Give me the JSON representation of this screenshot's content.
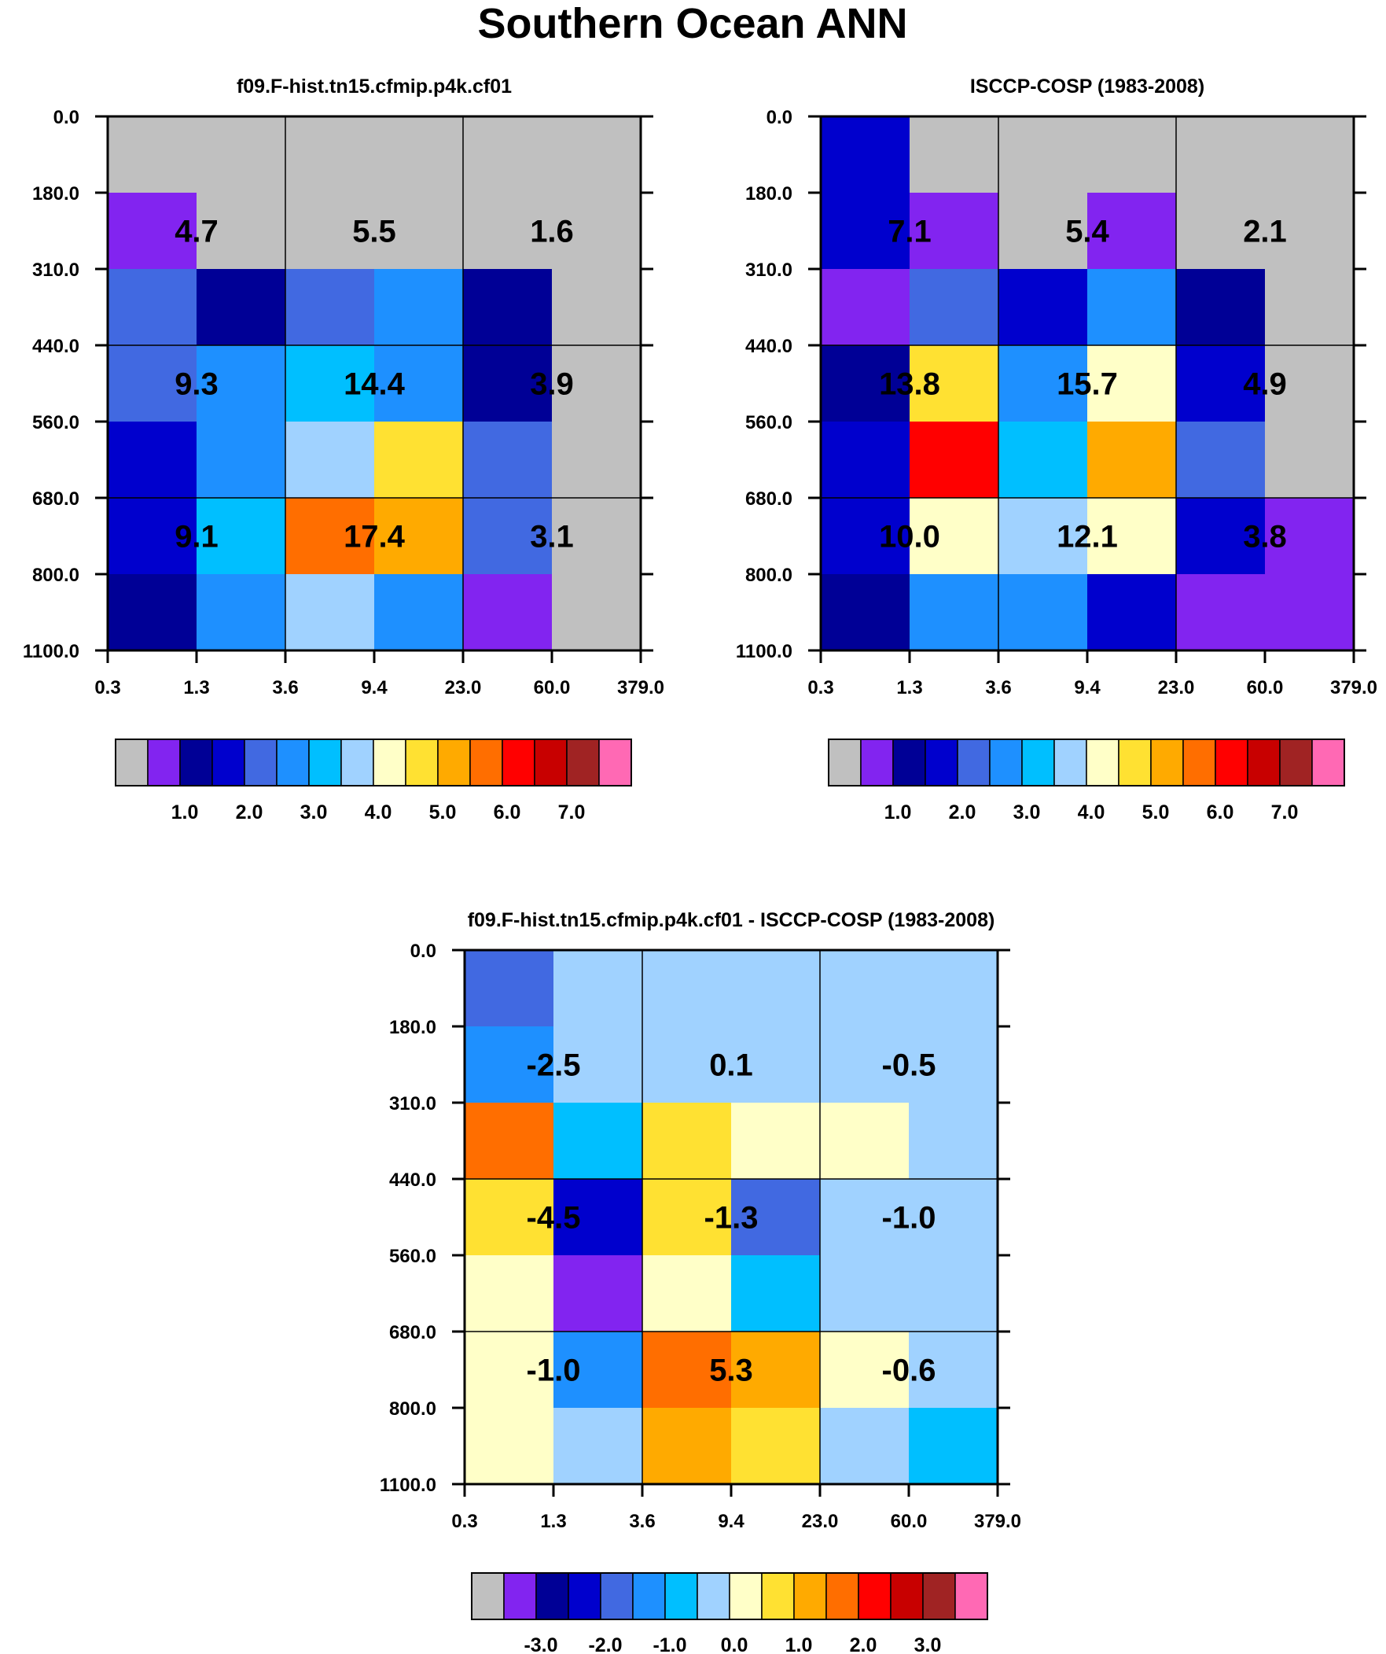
{
  "figure": {
    "title": "Southern Ocean ANN"
  },
  "chart_data": [
    {
      "type": "heatmap",
      "name": "panel-model",
      "title": "f09.F-hist.tn15.cfmip.p4k.cf01",
      "xticklabels": [
        "0.3",
        "1.3",
        "3.6",
        "9.4",
        "23.0",
        "60.0",
        "379.0"
      ],
      "yticklabels": [
        "0.0",
        "180.0",
        "310.0",
        "440.0",
        "560.0",
        "680.0",
        "800.0",
        "1100.0"
      ],
      "grid": [
        [
          "missing",
          "missing",
          "missing",
          "missing",
          "missing",
          "missing"
        ],
        [
          "0.5-1.0",
          "missing",
          "missing",
          "missing",
          "missing",
          "missing"
        ],
        [
          "2.5-3.0",
          "1.0-1.5",
          "2.5-3.0",
          "3.0-3.5",
          "1.0-1.5",
          "missing"
        ],
        [
          "2.5-3.0",
          "3.0-3.5",
          "3.5-4.0",
          "3.0-3.5",
          "1.0-1.5",
          "missing"
        ],
        [
          "1.5-2.0",
          "3.0-3.5",
          "4.0-4.5",
          "5.0-5.5",
          "2.5-3.0",
          "missing"
        ],
        [
          "1.5-2.0",
          "3.5-4.0",
          "6.0-6.5",
          "5.5-6.0",
          "2.5-3.0",
          "missing"
        ],
        [
          "1.0-1.5",
          "3.0-3.5",
          "4.0-4.5",
          "3.0-3.5",
          "0.5-1.0",
          "missing"
        ]
      ],
      "annotations": [
        {
          "label": "4.7",
          "row": 0,
          "col": 0
        },
        {
          "label": "5.5",
          "row": 0,
          "col": 1
        },
        {
          "label": "1.6",
          "row": 0,
          "col": 2
        },
        {
          "label": "9.3",
          "row": 1,
          "col": 0
        },
        {
          "label": "14.4",
          "row": 1,
          "col": 1
        },
        {
          "label": "3.9",
          "row": 1,
          "col": 2
        },
        {
          "label": "9.1",
          "row": 2,
          "col": 0
        },
        {
          "label": "17.4",
          "row": 2,
          "col": 1
        },
        {
          "label": "3.1",
          "row": 2,
          "col": 2
        }
      ],
      "colorbar": {
        "bins": [
          "missing",
          "0.5-1.0",
          "1.0-1.5",
          "1.5-2.0",
          "2.5-3.0",
          "3.0-3.5",
          "3.5-4.0",
          "4.0-4.5",
          "4.5-5.0",
          "5.0-5.5",
          "5.5-6.0",
          "6.0-6.5",
          "6.5-7.0",
          "7.0-7.5",
          "7.5-8.0",
          ">8.0"
        ],
        "labels": [
          "1.0",
          "2.0",
          "3.0",
          "4.0",
          "5.0",
          "6.0",
          "7.0"
        ],
        "label_boxes": [
          2,
          4,
          6,
          8,
          10,
          12,
          14
        ]
      }
    },
    {
      "type": "heatmap",
      "name": "panel-obs",
      "title": "ISCCP-COSP (1983-2008)",
      "xticklabels": [
        "0.3",
        "1.3",
        "3.6",
        "9.4",
        "23.0",
        "60.0",
        "379.0"
      ],
      "yticklabels": [
        "0.0",
        "180.0",
        "310.0",
        "440.0",
        "560.0",
        "680.0",
        "800.0",
        "1100.0"
      ],
      "grid": [
        [
          "1.5-2.0",
          "missing",
          "missing",
          "missing",
          "missing",
          "missing"
        ],
        [
          "1.5-2.0",
          "0.5-1.0",
          "missing",
          "0.5-1.0",
          "missing",
          "missing"
        ],
        [
          "0.5-1.0",
          "2.5-3.0",
          "1.5-2.0",
          "3.0-3.5",
          "1.0-1.5",
          "missing"
        ],
        [
          "1.0-1.5",
          "5.0-5.5",
          "3.0-3.5",
          "4.5-5.0",
          "1.5-2.0",
          "missing"
        ],
        [
          "1.5-2.0",
          "6.5-7.0",
          "3.5-4.0",
          "5.5-6.0",
          "2.5-3.0",
          "missing"
        ],
        [
          "1.5-2.0",
          "4.5-5.0",
          "4.0-4.5",
          "4.5-5.0",
          "1.5-2.0",
          "0.5-1.0"
        ],
        [
          "1.0-1.5",
          "3.0-3.5",
          "3.0-3.5",
          "1.5-2.0",
          "0.5-1.0",
          "0.5-1.0"
        ]
      ],
      "annotations": [
        {
          "label": "7.1",
          "row": 0,
          "col": 0
        },
        {
          "label": "5.4",
          "row": 0,
          "col": 1
        },
        {
          "label": "2.1",
          "row": 0,
          "col": 2
        },
        {
          "label": "13.8",
          "row": 1,
          "col": 0
        },
        {
          "label": "15.7",
          "row": 1,
          "col": 1
        },
        {
          "label": "4.9",
          "row": 1,
          "col": 2
        },
        {
          "label": "10.0",
          "row": 2,
          "col": 0
        },
        {
          "label": "12.1",
          "row": 2,
          "col": 1
        },
        {
          "label": "3.8",
          "row": 2,
          "col": 2
        }
      ],
      "colorbar": {
        "bins": [
          "missing",
          "0.5-1.0",
          "1.0-1.5",
          "1.5-2.0",
          "2.5-3.0",
          "3.0-3.5",
          "3.5-4.0",
          "4.0-4.5",
          "4.5-5.0",
          "5.0-5.5",
          "5.5-6.0",
          "6.0-6.5",
          "6.5-7.0",
          "7.0-7.5",
          "7.5-8.0",
          ">8.0"
        ],
        "labels": [
          "1.0",
          "2.0",
          "3.0",
          "4.0",
          "5.0",
          "6.0",
          "7.0"
        ],
        "label_boxes": [
          2,
          4,
          6,
          8,
          10,
          12,
          14
        ]
      }
    },
    {
      "type": "heatmap",
      "name": "panel-diff",
      "title": "f09.F-hist.tn15.cfmip.p4k.cf01 - ISCCP-COSP (1983-2008)",
      "xticklabels": [
        "0.3",
        "1.3",
        "3.6",
        "9.4",
        "23.0",
        "60.0",
        "379.0"
      ],
      "yticklabels": [
        "0.0",
        "180.0",
        "310.0",
        "440.0",
        "560.0",
        "680.0",
        "800.0",
        "1100.0"
      ],
      "grid": [
        [
          "-1.5 to -1.0",
          "-0.5 to 0.0",
          "-0.5 to 0.0",
          "-0.5 to 0.0",
          "-0.5 to 0.0",
          "-0.5 to 0.0"
        ],
        [
          "-1.0 to -0.5",
          "-0.5 to 0.0",
          "-0.5 to 0.0",
          "-0.5 to 0.0",
          "-0.5 to 0.0",
          "-0.5 to 0.0"
        ],
        [
          "1.5 to 2.0",
          "-0.5 to 0.0 (cyan)",
          "0.5 to 1.0",
          "0.0 to 0.5",
          "0.0 to 0.5",
          "-0.5 to 0.0"
        ],
        [
          "0.5 to 1.0",
          "-2.5 to -2.0",
          "0.5 to 1.0",
          "-1.5 to -1.0",
          "-0.5 to 0.0",
          "-0.5 to 0.0"
        ],
        [
          "0.0 to 0.5",
          "< -3.0",
          "0.0 to 0.5",
          "-0.5 to 0.0 (cyan)",
          "-0.5 to 0.0",
          "-0.5 to 0.0"
        ],
        [
          "0.0 to 0.5",
          "-1.0 to -0.5",
          "1.5 to 2.0",
          "1.0 to 1.5",
          "0.0 to 0.5",
          "-0.5 to 0.0"
        ],
        [
          "0.0 to 0.5",
          "-0.5 to 0.0",
          "1.0 to 1.5",
          "0.5 to 1.0",
          "-0.5 to 0.0",
          "-0.5 to 0.0 (cyan)"
        ]
      ],
      "annotations": [
        {
          "label": "-2.5",
          "row": 0,
          "col": 0
        },
        {
          "label": "0.1",
          "row": 0,
          "col": 1
        },
        {
          "label": "-0.5",
          "row": 0,
          "col": 2
        },
        {
          "label": "-4.5",
          "row": 1,
          "col": 0
        },
        {
          "label": "-1.3",
          "row": 1,
          "col": 1
        },
        {
          "label": "-1.0",
          "row": 1,
          "col": 2
        },
        {
          "label": "-1.0",
          "row": 2,
          "col": 0
        },
        {
          "label": "5.3",
          "row": 2,
          "col": 1
        },
        {
          "label": "-0.6",
          "row": 2,
          "col": 2
        }
      ],
      "colorbar": {
        "bins": [
          "missing",
          "< -3.0",
          "-3.0 to -2.5",
          "-2.5 to -2.0",
          "-1.5 to -1.0",
          "-1.0 to -0.5",
          "-0.5 to 0.0 (cyan)",
          "-0.5 to 0.0",
          "0.0 to 0.5",
          "0.5 to 1.0",
          "1.0 to 1.5",
          "1.5 to 2.0",
          "2.0 to 2.5",
          "2.5 to 3.0",
          "3.0 to 3.5",
          "> 3.5"
        ],
        "labels": [
          "-3.0",
          "-2.0",
          "-1.0",
          "0.0",
          "1.0",
          "2.0",
          "3.0"
        ],
        "label_boxes": [
          2,
          4,
          6,
          8,
          10,
          12,
          14
        ]
      }
    }
  ],
  "colors": {
    "missing": "#c0c0c0",
    "0.5-1.0": "#8224f0",
    "1.0-1.5": "#000096",
    "1.5-2.0": "#0000cd",
    "2.5-3.0": "#4169e1",
    "3.0-3.5": "#1e90ff",
    "3.5-4.0": "#00bfff",
    "4.0-4.5": "#a0d2ff",
    "4.5-5.0": "#ffffc8",
    "5.0-5.5": "#ffe132",
    "5.5-6.0": "#ffaa00",
    "6.0-6.5": "#ff6e00",
    "6.5-7.0": "#ff0000",
    "7.0-7.5": "#c80000",
    "7.5-8.0": "#a02323",
    ">8.0": "#ff69b4",
    "< -3.0": "#8224f0",
    "-3.0 to -2.5": "#000096",
    "-2.5 to -2.0": "#0000cd",
    "-1.5 to -1.0": "#4169e1",
    "-1.0 to -0.5": "#1e90ff",
    "-0.5 to 0.0 (cyan)": "#00bfff",
    "-0.5 to 0.0": "#a0d2ff",
    "0.0 to 0.5": "#ffffc8",
    "0.5 to 1.0": "#ffe132",
    "1.0 to 1.5": "#ffaa00",
    "1.5 to 2.0": "#ff6e00",
    "2.0 to 2.5": "#ff0000",
    "2.5 to 3.0": "#c80000",
    "3.0 to 3.5": "#a02323",
    "> 3.5": "#ff69b4"
  }
}
